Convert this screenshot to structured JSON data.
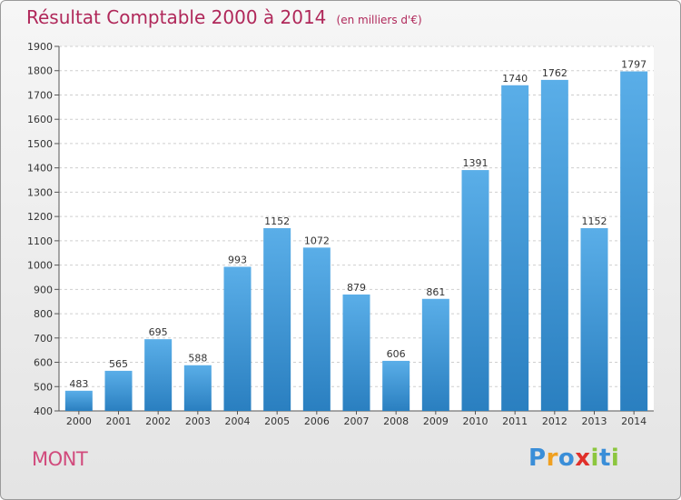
{
  "chart_data": {
    "type": "bar",
    "title": "Résultat Comptable 2000 à 2014",
    "subtitle": "(en milliers d'€)",
    "categories": [
      "2000",
      "2001",
      "2002",
      "2003",
      "2004",
      "2005",
      "2006",
      "2007",
      "2008",
      "2009",
      "2010",
      "2011",
      "2012",
      "2013",
      "2014"
    ],
    "values": [
      483,
      565,
      695,
      588,
      993,
      1152,
      1072,
      879,
      606,
      861,
      1391,
      1740,
      1762,
      1152,
      1797
    ],
    "ylim": [
      400,
      1900
    ],
    "yticks": [
      400,
      500,
      600,
      700,
      800,
      900,
      1000,
      1100,
      1200,
      1300,
      1400,
      1500,
      1600,
      1700,
      1800,
      1900
    ],
    "grid": true,
    "bar_color_top": "#5aaee8",
    "bar_color_bottom": "#2a7fc0"
  },
  "footer": {
    "city": "MONT",
    "logo_letters": [
      {
        "ch": "P",
        "color": "#3a8ed8"
      },
      {
        "ch": "r",
        "color": "#f0a020"
      },
      {
        "ch": "o",
        "color": "#3a8ed8"
      },
      {
        "ch": "x",
        "color": "#e0302a"
      },
      {
        "ch": "i",
        "color": "#8cc63e"
      },
      {
        "ch": "t",
        "color": "#3a8ed8"
      },
      {
        "ch": "i",
        "color": "#8cc63e"
      }
    ]
  }
}
